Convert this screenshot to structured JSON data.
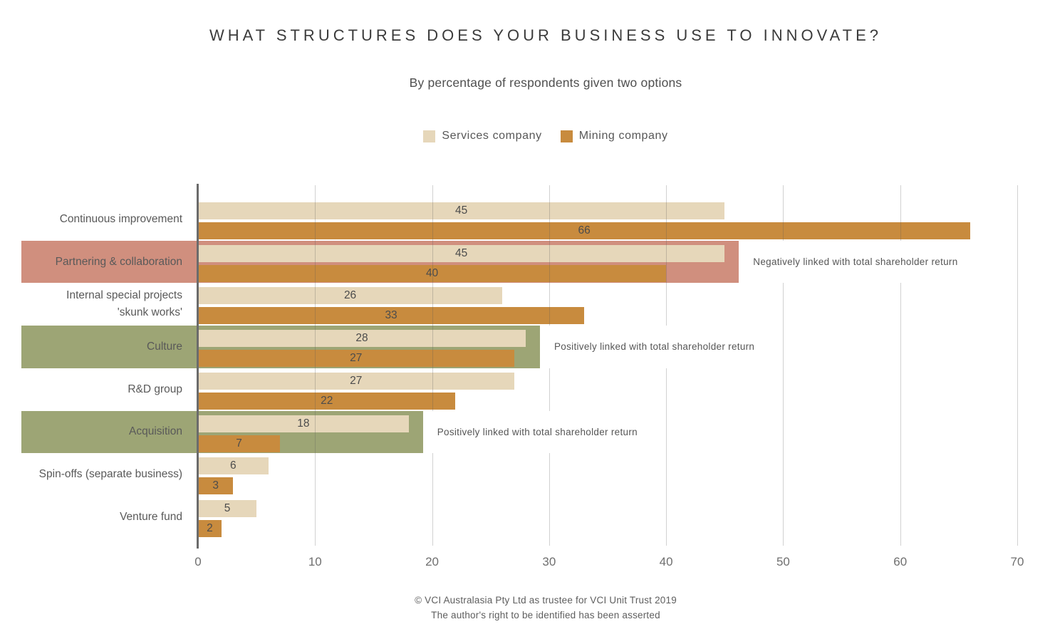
{
  "title": "WHAT STRUCTURES DOES YOUR BUSINESS USE TO INNOVATE?",
  "subtitle": "By percentage of respondents given two options",
  "legend": {
    "items": [
      {
        "label": "Services company",
        "color": "#e6d7ba"
      },
      {
        "label": "Mining company",
        "color": "#c88b3e"
      }
    ]
  },
  "chart_data": {
    "type": "bar",
    "orientation": "horizontal",
    "title": "WHAT STRUCTURES DOES YOUR BUSINESS USE TO INNOVATE?",
    "subtitle": "By percentage of respondents given two options",
    "categories": [
      "Continuous improvement",
      "Partnering & collaboration",
      "Internal special projects\n'skunk works'",
      "Culture",
      "R&D group",
      "Acquisition",
      "Spin-offs (separate business)",
      "Venture fund"
    ],
    "series": [
      {
        "name": "Services company",
        "color": "#e6d7ba",
        "values": [
          45,
          45,
          26,
          28,
          27,
          18,
          6,
          5
        ]
      },
      {
        "name": "Mining company",
        "color": "#c88b3e",
        "values": [
          66,
          40,
          33,
          27,
          22,
          7,
          3,
          2
        ]
      }
    ],
    "value_labels": true,
    "xlim": [
      0,
      70
    ],
    "xticks": [
      0,
      10,
      20,
      30,
      40,
      50,
      60,
      70
    ],
    "grid": "vertical",
    "legend_position": "top-center",
    "highlights": [
      {
        "category_index": 1,
        "color": "#d08f7e",
        "annotation": "Negatively linked with total shareholder return"
      },
      {
        "category_index": 3,
        "color": "#9da575",
        "annotation": "Positively linked with total shareholder return"
      },
      {
        "category_index": 5,
        "color": "#9da575",
        "annotation": "Positively linked with total shareholder return"
      }
    ]
  },
  "footer": {
    "line1": "© VCI Australasia Pty Ltd as trustee for VCI Unit Trust 2019",
    "line2": "The author's right to be identified has been asserted"
  },
  "colors": {
    "services_bar": "#e6d7ba",
    "mining_bar": "#c88b3e",
    "negative_highlight": "#d08f7e",
    "positive_highlight": "#9da575",
    "axis_line": "#6b6b6b",
    "gridline": "#cdcdcd",
    "text": "#595959"
  }
}
